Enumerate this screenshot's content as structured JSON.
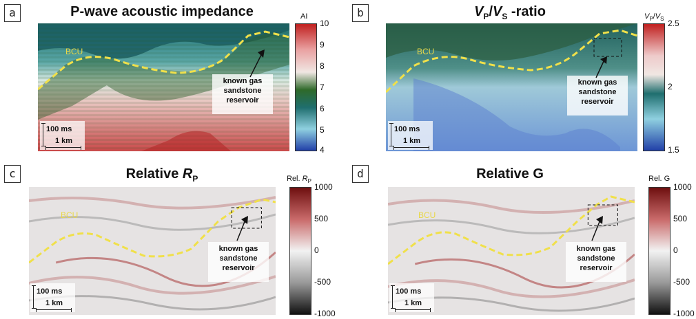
{
  "panels": [
    {
      "letter": "a",
      "title": "P-wave acoustic impedance",
      "colorbar": {
        "label": "AI",
        "ticks": [
          "10",
          "9",
          "8",
          "7",
          "6",
          "5",
          "4"
        ]
      },
      "bcu": "BCU",
      "gas": {
        "line1": "known gas",
        "line2": "sandstone",
        "line3": "reservoir"
      },
      "scale": {
        "ms": "100 ms",
        "km": "1 km"
      },
      "colors": [
        "#c0201f",
        "#e9a0a0",
        "#f0e7e3",
        "#2f6a2a",
        "#1f6e6e",
        "#8fd0e0",
        "#2140a8"
      ]
    },
    {
      "letter": "b",
      "title_main": "V",
      "title_sub1": "P",
      "title_slash": "/",
      "title_v2": "V",
      "title_sub2": "S",
      "title_rest": " -ratio",
      "colorbar": {
        "label_v1": "V",
        "label_sub1": "P",
        "label_slash": "/",
        "label_v2": "V",
        "label_sub2": "S",
        "ticks": [
          "2.5",
          "2",
          "1.5"
        ]
      },
      "bcu": "BCU",
      "gas": {
        "line1": "known gas",
        "line2": "sandstone",
        "line3": "reservoir"
      },
      "scale": {
        "ms": "100 ms",
        "km": "1 km"
      },
      "colors": [
        "#c0201f",
        "#f0e7e3",
        "#1f6e6e",
        "#8fd0e0",
        "#2140a8"
      ]
    },
    {
      "letter": "c",
      "title": "Relative ",
      "title_it": "R",
      "title_sub": "P",
      "colorbar": {
        "label": "Rel. ",
        "label_it": "R",
        "label_sub": "P",
        "ticks": [
          "1000",
          "500",
          "0",
          "-500",
          "-1000"
        ]
      },
      "bcu": "BCU",
      "gas": {
        "line1": "known gas",
        "line2": "sandstone",
        "line3": "reservoir"
      },
      "scale": {
        "ms": "100 ms",
        "km": "1 km"
      },
      "colors": [
        "#6e0f0f",
        "#d9a2a2",
        "#f2f2f2",
        "#9a9a9a",
        "#111111"
      ]
    },
    {
      "letter": "d",
      "title": "Relative G",
      "colorbar": {
        "label": "Rel. G",
        "ticks": [
          "1000",
          "500",
          "0",
          "-500",
          "-1000"
        ]
      },
      "bcu": "BCU",
      "gas": {
        "line1": "known gas",
        "line2": "sandstone",
        "line3": "reservoir"
      },
      "scale": {
        "ms": "100 ms",
        "km": "1 km"
      },
      "colors": [
        "#6e0f0f",
        "#d9a2a2",
        "#f2f2f2",
        "#9a9a9a",
        "#111111"
      ]
    }
  ]
}
